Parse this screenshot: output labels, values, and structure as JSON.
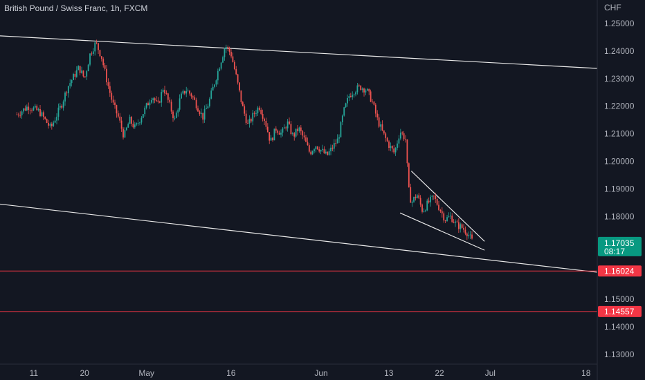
{
  "header": {
    "title": "British Pound / Swiss Franc, 1h, FXCM"
  },
  "colors": {
    "background": "#131722",
    "bull": "#26a69a",
    "bear": "#ef5350",
    "trendline": "#e8e8e8",
    "level_line": "#f23645",
    "price_tag": "#089981",
    "level_tag": "#f23645",
    "axis_text": "#b2b5be"
  },
  "chart_data": {
    "type": "candlestick",
    "title": "British Pound / Swiss Franc, 1h, FXCM",
    "y_unit_label": "CHF",
    "ylim": [
      1.1265,
      1.2585
    ],
    "y_ticks": [
      1.25,
      1.24,
      1.23,
      1.22,
      1.21,
      1.2,
      1.19,
      1.18,
      1.15,
      1.14,
      1.13
    ],
    "y_tick_labels": [
      "1.25000",
      "1.24000",
      "1.23000",
      "1.22000",
      "1.21000",
      "1.20000",
      "1.19000",
      "1.18000",
      "1.15000",
      "1.14000",
      "1.13000"
    ],
    "x_ticks": [
      {
        "label": "11",
        "date": "2022-04-11"
      },
      {
        "label": "20",
        "date": "2022-04-20"
      },
      {
        "label": "May",
        "date": "2022-05-01"
      },
      {
        "label": "16",
        "date": "2022-05-16"
      },
      {
        "label": "Jun",
        "date": "2022-06-01"
      },
      {
        "label": "13",
        "date": "2022-06-13"
      },
      {
        "label": "22",
        "date": "2022-06-22"
      },
      {
        "label": "Jul",
        "date": "2022-07-01"
      },
      {
        "label": "18",
        "date": "2022-07-18"
      }
    ],
    "price_path": [
      [
        "2022-04-08",
        1.217
      ],
      [
        "2022-04-10",
        1.22
      ],
      [
        "2022-04-12",
        1.218
      ],
      [
        "2022-04-14",
        1.212
      ],
      [
        "2022-04-16",
        1.221
      ],
      [
        "2022-04-17",
        1.227
      ],
      [
        "2022-04-19",
        1.234
      ],
      [
        "2022-04-20",
        1.23
      ],
      [
        "2022-04-21",
        1.239
      ],
      [
        "2022-04-22",
        1.243
      ],
      [
        "2022-04-23",
        1.238
      ],
      [
        "2022-04-24",
        1.229
      ],
      [
        "2022-04-25",
        1.221
      ],
      [
        "2022-04-26",
        1.216
      ],
      [
        "2022-04-27",
        1.209
      ],
      [
        "2022-04-28",
        1.215
      ],
      [
        "2022-04-29",
        1.212
      ],
      [
        "2022-05-01",
        1.22
      ],
      [
        "2022-05-02",
        1.224
      ],
      [
        "2022-05-03",
        1.22
      ],
      [
        "2022-05-04",
        1.227
      ],
      [
        "2022-05-05",
        1.221
      ],
      [
        "2022-05-06",
        1.215
      ],
      [
        "2022-05-07",
        1.223
      ],
      [
        "2022-05-08",
        1.226
      ],
      [
        "2022-05-09",
        1.224
      ],
      [
        "2022-05-10",
        1.22
      ],
      [
        "2022-05-11",
        1.216
      ],
      [
        "2022-05-12",
        1.221
      ],
      [
        "2022-05-13",
        1.228
      ],
      [
        "2022-05-14",
        1.235
      ],
      [
        "2022-05-15",
        1.242
      ],
      [
        "2022-05-16",
        1.239
      ],
      [
        "2022-05-17",
        1.23
      ],
      [
        "2022-05-18",
        1.22
      ],
      [
        "2022-05-19",
        1.213
      ],
      [
        "2022-05-20",
        1.217
      ],
      [
        "2022-05-21",
        1.22
      ],
      [
        "2022-05-22",
        1.215
      ],
      [
        "2022-05-23",
        1.207
      ],
      [
        "2022-05-24",
        1.212
      ],
      [
        "2022-05-25",
        1.21
      ],
      [
        "2022-05-26",
        1.214
      ],
      [
        "2022-05-27",
        1.209
      ],
      [
        "2022-05-28",
        1.212
      ],
      [
        "2022-05-29",
        1.208
      ],
      [
        "2022-05-30",
        1.203
      ],
      [
        "2022-05-31",
        1.206
      ],
      [
        "2022-06-01",
        1.204
      ],
      [
        "2022-06-02",
        1.202
      ],
      [
        "2022-06-03",
        1.205
      ],
      [
        "2022-06-04",
        1.208
      ],
      [
        "2022-06-05",
        1.218
      ],
      [
        "2022-06-06",
        1.224
      ],
      [
        "2022-06-07",
        1.226
      ],
      [
        "2022-06-08",
        1.227
      ],
      [
        "2022-06-09",
        1.226
      ],
      [
        "2022-06-10",
        1.222
      ],
      [
        "2022-06-11",
        1.215
      ],
      [
        "2022-06-12",
        1.21
      ],
      [
        "2022-06-13",
        1.206
      ],
      [
        "2022-06-14",
        1.203
      ],
      [
        "2022-06-15",
        1.211
      ],
      [
        "2022-06-16",
        1.208
      ],
      [
        "2022-06-16T12",
        1.19
      ],
      [
        "2022-06-17",
        1.185
      ],
      [
        "2022-06-18",
        1.188
      ],
      [
        "2022-06-19",
        1.182
      ],
      [
        "2022-06-20",
        1.185
      ],
      [
        "2022-06-21",
        1.187
      ],
      [
        "2022-06-22",
        1.183
      ],
      [
        "2022-06-23",
        1.179
      ],
      [
        "2022-06-24",
        1.18
      ],
      [
        "2022-06-25",
        1.177
      ],
      [
        "2022-06-26",
        1.176
      ],
      [
        "2022-06-27",
        1.174
      ],
      [
        "2022-06-28",
        1.1703
      ]
    ],
    "trendlines": [
      {
        "name": "channel-upper",
        "from": [
          "2022-04-05",
          1.2455
        ],
        "to": [
          "2022-07-20",
          1.2337
        ]
      },
      {
        "name": "channel-lower",
        "from": [
          "2022-04-05",
          1.1845
        ],
        "to": [
          "2022-07-20",
          1.1598
        ]
      },
      {
        "name": "wedge-upper",
        "from": [
          "2022-06-17",
          1.1965
        ],
        "to": [
          "2022-06-30",
          1.171
        ]
      },
      {
        "name": "wedge-lower",
        "from": [
          "2022-06-15",
          1.1813
        ],
        "to": [
          "2022-06-30",
          1.1678
        ]
      }
    ],
    "horizontal_levels": [
      {
        "value": 1.16024,
        "label": "1.16024"
      },
      {
        "value": 1.14557,
        "label": "1.14557"
      }
    ],
    "current_price": {
      "value": 1.17035,
      "label": "1.17035",
      "countdown": "08:17"
    }
  }
}
